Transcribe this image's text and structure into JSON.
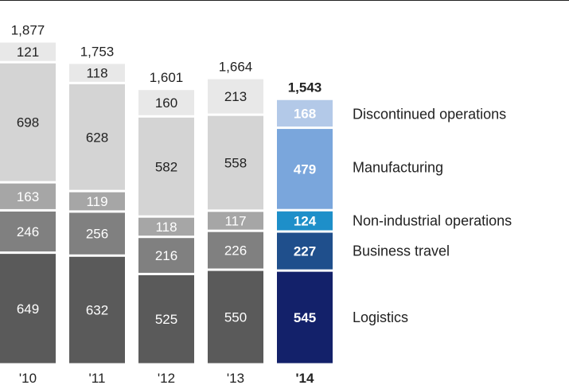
{
  "chart_data": {
    "type": "bar",
    "stacked": true,
    "categories": [
      "'10",
      "'11",
      "'12",
      "'13",
      "'14"
    ],
    "totals": [
      "1,877",
      "1,753",
      "1,601",
      "1,664",
      "1,543"
    ],
    "highlight_index": 4,
    "series": [
      {
        "name": "Logistics",
        "values": [
          649,
          632,
          525,
          550,
          545
        ],
        "color": "#5a5a5a",
        "highlight_color": "#13216a"
      },
      {
        "name": "Business travel",
        "values": [
          246,
          256,
          216,
          226,
          227
        ],
        "color": "#808080",
        "highlight_color": "#1f4f8c"
      },
      {
        "name": "Non-industrial operations",
        "values": [
          163,
          119,
          118,
          117,
          124
        ],
        "color": "#a6a6a6",
        "highlight_color": "#1e8fc9"
      },
      {
        "name": "Manufacturing",
        "values": [
          698,
          628,
          582,
          558,
          479
        ],
        "color": "#d4d4d4",
        "highlight_color": "#7aa6dc"
      },
      {
        "name": "Discontinued operations",
        "values": [
          121,
          118,
          160,
          213,
          168
        ],
        "color": "#e8e8e8",
        "highlight_color": "#b3c9e8"
      }
    ],
    "legend_position": "right",
    "grid": false,
    "ylim": [
      0,
      1877
    ]
  }
}
